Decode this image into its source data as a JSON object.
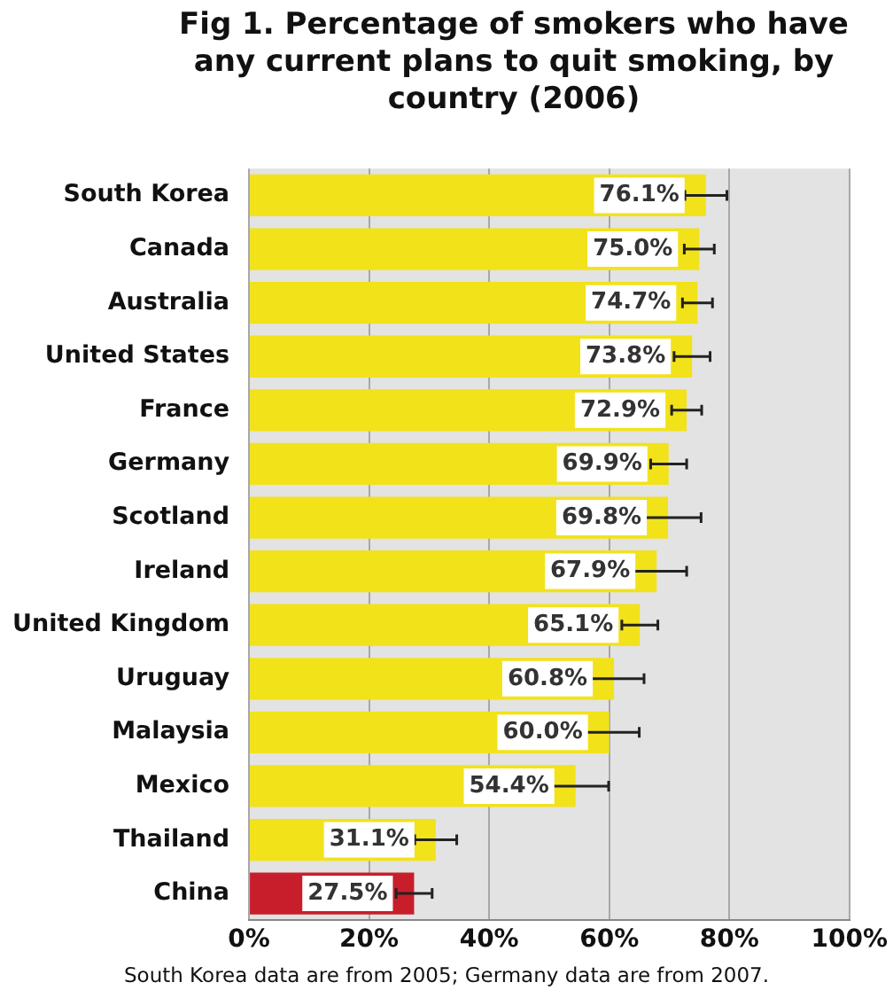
{
  "chart_data": {
    "type": "bar",
    "orientation": "horizontal",
    "title": "Fig 1. Percentage of smokers who have any current plans to quit smoking, by country (2006)",
    "categories": [
      "South Korea",
      "Canada",
      "Australia",
      "United States",
      "France",
      "Germany",
      "Scotland",
      "Ireland",
      "United Kingdom",
      "Uruguay",
      "Malaysia",
      "Mexico",
      "Thailand",
      "China"
    ],
    "values": [
      76.1,
      75.0,
      74.7,
      73.8,
      72.9,
      69.9,
      69.8,
      67.9,
      65.1,
      60.8,
      60.0,
      54.4,
      31.1,
      27.5
    ],
    "value_labels": [
      "76.1%",
      "75.0%",
      "74.7%",
      "73.8%",
      "72.9%",
      "69.9%",
      "69.8%",
      "67.9%",
      "65.1%",
      "60.8%",
      "60.0%",
      "54.4%",
      "31.1%",
      "27.5%"
    ],
    "errors": [
      3.5,
      2.5,
      2.5,
      3,
      2.5,
      3,
      5.5,
      5,
      3,
      5,
      5,
      5.5,
      3.5,
      3
    ],
    "colors": [
      "#f2e21a",
      "#f2e21a",
      "#f2e21a",
      "#f2e21a",
      "#f2e21a",
      "#f2e21a",
      "#f2e21a",
      "#f2e21a",
      "#f2e21a",
      "#f2e21a",
      "#f2e21a",
      "#f2e21a",
      "#f2e21a",
      "#c81e2c"
    ],
    "xlim": [
      0,
      100
    ],
    "xticks": [
      {
        "value": 0,
        "label": "0%"
      },
      {
        "value": 20,
        "label": "20%"
      },
      {
        "value": 40,
        "label": "40%"
      },
      {
        "value": 60,
        "label": "60%"
      },
      {
        "value": 80,
        "label": "80%"
      },
      {
        "value": 100,
        "label": "100%"
      }
    ],
    "grid": "x",
    "annotations": [
      "South Korea data are from 2005; Germany data are from 2007."
    ]
  }
}
